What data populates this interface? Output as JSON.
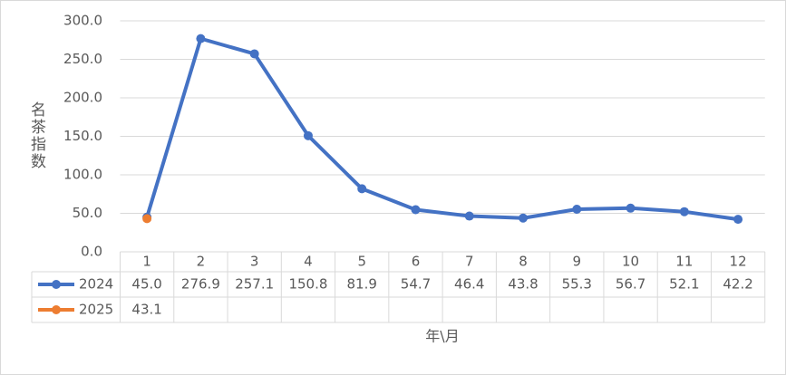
{
  "chart_data": {
    "type": "line",
    "y_label": "名茶指数",
    "x_label": "年\\月",
    "categories": [
      "1",
      "2",
      "3",
      "4",
      "5",
      "6",
      "7",
      "8",
      "9",
      "10",
      "11",
      "12"
    ],
    "series": [
      {
        "name": "2024",
        "color": "#4472c4",
        "values": [
          45.0,
          276.9,
          257.1,
          150.8,
          81.9,
          54.7,
          46.4,
          43.8,
          55.3,
          56.7,
          52.1,
          42.2
        ],
        "value_labels": [
          "45.0",
          "276.9",
          "257.1",
          "150.8",
          "81.9",
          "54.7",
          "46.4",
          "43.8",
          "55.3",
          "56.7",
          "52.1",
          "42.2"
        ]
      },
      {
        "name": "2025",
        "color": "#ed7d31",
        "values": [
          43.1,
          null,
          null,
          null,
          null,
          null,
          null,
          null,
          null,
          null,
          null,
          null
        ],
        "value_labels": [
          "43.1",
          null,
          null,
          null,
          null,
          null,
          null,
          null,
          null,
          null,
          null,
          null
        ]
      }
    ],
    "ylim": [
      0,
      300
    ],
    "yticks": [
      {
        "value": 0,
        "label": "0.0"
      },
      {
        "value": 50,
        "label": "50.0"
      },
      {
        "value": 100,
        "label": "100.0"
      },
      {
        "value": 150,
        "label": "150.0"
      },
      {
        "value": 200,
        "label": "200.0"
      },
      {
        "value": 250,
        "label": "250.0"
      },
      {
        "value": 300,
        "label": "300.0"
      }
    ],
    "grid": true,
    "data_table": true
  }
}
